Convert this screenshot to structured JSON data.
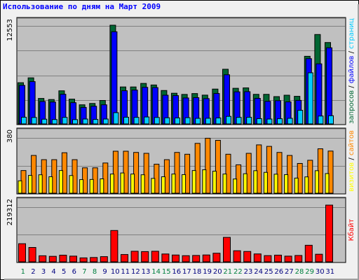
{
  "title": "Использование по дням на Март 2009",
  "colors": {
    "hits": "#006633",
    "files": "#0000ff",
    "pages": "#00ccff",
    "visits": "#ff8800",
    "sites": "#ffff00",
    "kbytes": "#ff0000",
    "weekend_day": "#008040",
    "weekday": "#000080",
    "panel_bg": "#c0c0c0"
  },
  "chart_data": [
    {
      "type": "bar",
      "name": "hits-files-pages",
      "ymax_label": "12553",
      "ylim": [
        0,
        12553
      ],
      "right_label": [
        {
          "text": "запросов",
          "color": "#006633"
        },
        {
          "text": " / ",
          "color": "#000000"
        },
        {
          "text": "файлов",
          "color": "#0000ff"
        },
        {
          "text": " / ",
          "color": "#000000"
        },
        {
          "text": "страниц",
          "color": "#00ccff"
        }
      ],
      "series": [
        {
          "key": "hits",
          "values": [
            5240,
            5860,
            3240,
            3100,
            4210,
            3150,
            2430,
            2600,
            2980,
            12553,
            4700,
            4700,
            5150,
            4950,
            4250,
            3900,
            3750,
            3860,
            3660,
            4430,
            6950,
            4530,
            4580,
            3760,
            3760,
            3470,
            3650,
            3510,
            8600,
            11370,
            10350
          ]
        },
        {
          "key": "files",
          "values": [
            4900,
            5380,
            2850,
            2780,
            3770,
            2700,
            2100,
            2250,
            2430,
            11720,
            4220,
            4300,
            4650,
            4620,
            3650,
            3600,
            3300,
            3340,
            3220,
            3870,
            6250,
            4080,
            4100,
            3250,
            2870,
            2950,
            2800,
            2990,
            8300,
            7640,
            9680
          ]
        },
        {
          "key": "pages",
          "values": [
            850,
            820,
            600,
            560,
            830,
            550,
            620,
            570,
            620,
            1430,
            850,
            830,
            880,
            820,
            780,
            760,
            790,
            710,
            720,
            760,
            960,
            830,
            840,
            670,
            620,
            660,
            710,
            1730,
            6500,
            1000,
            1040
          ]
        }
      ]
    },
    {
      "type": "bar",
      "name": "visits-sites",
      "ymax_label": "380",
      "ylim": [
        0,
        380
      ],
      "right_label": [
        {
          "text": "визитов",
          "color": "#ffff00"
        },
        {
          "text": " / ",
          "color": "#000000"
        },
        {
          "text": "сайтов",
          "color": "#ff8800"
        }
      ],
      "series": [
        {
          "key": "visits",
          "values": [
            150,
            250,
            222,
            222,
            268,
            222,
            168,
            168,
            200,
            278,
            278,
            270,
            264,
            192,
            222,
            270,
            258,
            330,
            364,
            350,
            258,
            188,
            264,
            320,
            310,
            270,
            250,
            197,
            218,
            294,
            279
          ]
        },
        {
          "key": "sites",
          "values": [
            82,
            118,
            122,
            109,
            150,
            117,
            90,
            91,
            95,
            127,
            134,
            127,
            122,
            98,
            109,
            127,
            123,
            150,
            155,
            146,
            127,
            94,
            129,
            149,
            138,
            126,
            123,
            100,
            108,
            149,
            130
          ]
        }
      ]
    },
    {
      "type": "bar",
      "name": "kbytes",
      "ymax_label": "219312",
      "ylim": [
        0,
        219312
      ],
      "right_label": [
        {
          "text": "Кбайт",
          "color": "#ff0000"
        }
      ],
      "series": [
        {
          "key": "kbytes",
          "values": [
            70000,
            55500,
            23400,
            21200,
            25700,
            22000,
            15200,
            16700,
            20000,
            121100,
            28200,
            40800,
            39500,
            40800,
            30300,
            26300,
            23700,
            24600,
            26500,
            33200,
            94500,
            42800,
            40000,
            30500,
            24000,
            25800,
            21900,
            24500,
            64000,
            29300,
            219312
          ]
        }
      ]
    }
  ],
  "days": [
    {
      "label": "1",
      "weekend": true
    },
    {
      "label": "2",
      "weekend": false
    },
    {
      "label": "3",
      "weekend": false
    },
    {
      "label": "4",
      "weekend": false
    },
    {
      "label": "5",
      "weekend": false
    },
    {
      "label": "6",
      "weekend": false
    },
    {
      "label": "7",
      "weekend": true
    },
    {
      "label": "8",
      "weekend": true
    },
    {
      "label": "9",
      "weekend": false
    },
    {
      "label": "10",
      "weekend": false
    },
    {
      "label": "11",
      "weekend": false
    },
    {
      "label": "12",
      "weekend": false
    },
    {
      "label": "13",
      "weekend": false
    },
    {
      "label": "14",
      "weekend": true
    },
    {
      "label": "15",
      "weekend": true
    },
    {
      "label": "16",
      "weekend": false
    },
    {
      "label": "17",
      "weekend": false
    },
    {
      "label": "18",
      "weekend": false
    },
    {
      "label": "19",
      "weekend": false
    },
    {
      "label": "20",
      "weekend": false
    },
    {
      "label": "21",
      "weekend": true
    },
    {
      "label": "22",
      "weekend": true
    },
    {
      "label": "23",
      "weekend": false
    },
    {
      "label": "24",
      "weekend": false
    },
    {
      "label": "25",
      "weekend": false
    },
    {
      "label": "26",
      "weekend": false
    },
    {
      "label": "27",
      "weekend": false
    },
    {
      "label": "28",
      "weekend": true
    },
    {
      "label": "29",
      "weekend": true
    },
    {
      "label": "30",
      "weekend": false
    },
    {
      "label": "31",
      "weekend": false
    }
  ]
}
